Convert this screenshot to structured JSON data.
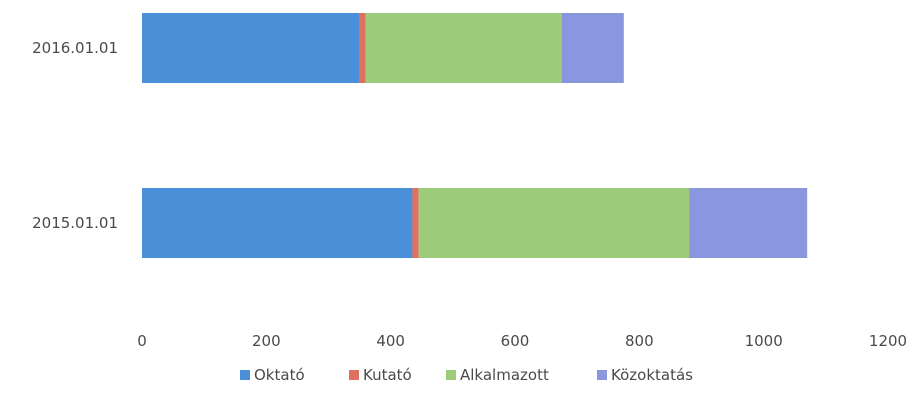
{
  "chart_data": {
    "type": "bar",
    "orientation": "horizontal",
    "stacked": true,
    "categories": [
      "2016.01.01",
      "2015.01.01"
    ],
    "series": [
      {
        "name": "Oktató",
        "color": "#4a90d9",
        "values": [
          350,
          435
        ]
      },
      {
        "name": "Kutató",
        "color": "#e07060",
        "values": [
          10,
          10
        ]
      },
      {
        "name": "Alkalmazott",
        "color": "#9ccc7a",
        "values": [
          315,
          435
        ]
      },
      {
        "name": "Közoktatás",
        "color": "#8a97de",
        "values": [
          100,
          190
        ]
      }
    ],
    "xlim": [
      0,
      1200
    ],
    "xticks": [
      "0",
      "200",
      "400",
      "600",
      "800",
      "1000",
      "1200"
    ],
    "legend_position": "bottom",
    "grid": false
  }
}
